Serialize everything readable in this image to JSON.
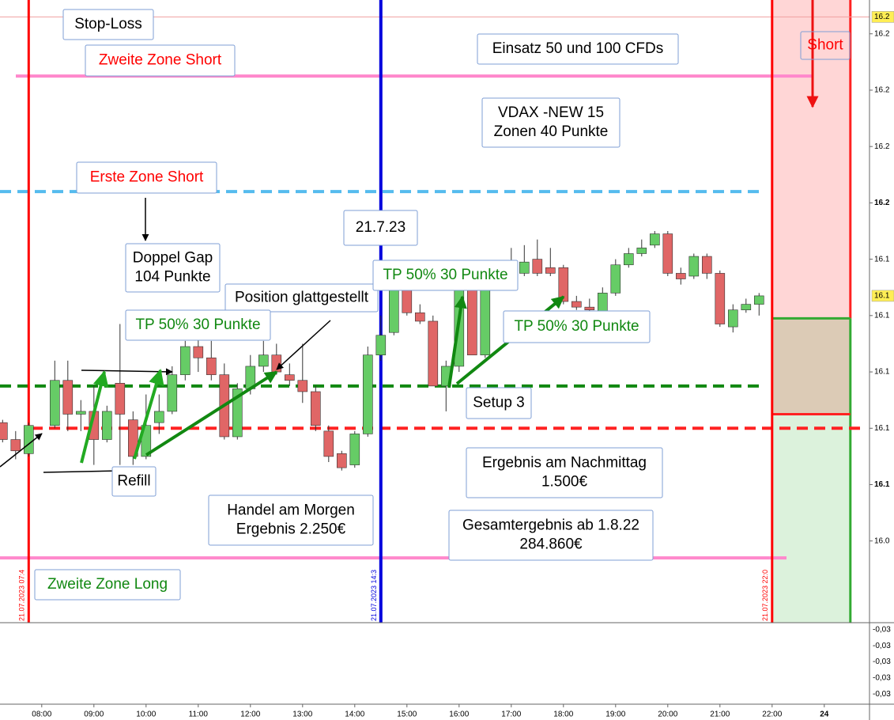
{
  "chart_data": {
    "type": "candlestick",
    "up_color": "#66cc66",
    "down_color": "#e06666",
    "x": [
      "07:15",
      "07:30",
      "07:45",
      "08:15",
      "08:30",
      "08:45",
      "09:00",
      "09:15",
      "09:30",
      "09:45",
      "10:00",
      "10:15",
      "10:30",
      "10:45",
      "11:00",
      "11:15",
      "11:30",
      "11:45",
      "12:00",
      "12:15",
      "12:30",
      "12:45",
      "13:00",
      "13:15",
      "13:30",
      "13:45",
      "14:00",
      "14:15",
      "14:30",
      "14:45",
      "15:00",
      "15:15",
      "15:30",
      "15:45",
      "16:00",
      "16:15",
      "16:30",
      "16:45",
      "17:00",
      "17:15",
      "17:30",
      "17:45",
      "18:00",
      "18:15",
      "18:30",
      "18:45",
      "19:00",
      "19:15",
      "19:30",
      "19:45",
      "20:00",
      "20:15",
      "20:30",
      "20:45",
      "21:00",
      "21:15",
      "21:30",
      "21:45"
    ],
    "open": [
      16122,
      16116,
      16111,
      16121,
      16137,
      16125,
      16126,
      16116,
      16136,
      16123,
      16110,
      16122,
      16126,
      16139,
      16149,
      16145,
      16139,
      16117,
      16134,
      16142,
      16146,
      16139,
      16137,
      16133,
      16119,
      16111,
      16107,
      16118,
      16146,
      16154,
      16170,
      16161,
      16158,
      16135,
      16142,
      16170,
      16146,
      16172,
      16175,
      16175,
      16180,
      16177,
      16177,
      16165,
      16163,
      16161,
      16168,
      16178,
      16182,
      16185,
      16189,
      16175,
      16174,
      16181,
      16175,
      16156,
      16162,
      16164
    ],
    "high": [
      16123,
      16119,
      16122,
      16144,
      16144,
      16130,
      16135,
      16128,
      16157,
      16126,
      16132,
      16132,
      16142,
      16151,
      16153,
      16151,
      16143,
      16136,
      16146,
      16151,
      16150,
      16143,
      16150,
      16135,
      16121,
      16112,
      16119,
      16149,
      16160,
      16171,
      16174,
      16164,
      16160,
      16144,
      16173,
      16174,
      16177,
      16178,
      16184,
      16185,
      16187,
      16184,
      16178,
      16167,
      16166,
      16170,
      16180,
      16184,
      16187,
      16190,
      16190,
      16177,
      16182,
      16182,
      16176,
      16164,
      16166,
      16168
    ],
    "low": [
      16115,
      16109,
      16110,
      16120,
      16119,
      16119,
      16107,
      16115,
      16107,
      16107,
      16109,
      16118,
      16125,
      16137,
      16140,
      16137,
      16116,
      16116,
      16132,
      16140,
      16139,
      16135,
      16129,
      16119,
      16108,
      16105,
      16106,
      16117,
      16144,
      16153,
      16160,
      16157,
      16135,
      16126,
      16140,
      16146,
      16145,
      16170,
      16174,
      16174,
      16174,
      16174,
      16164,
      16162,
      16160,
      16160,
      16167,
      16177,
      16181,
      16184,
      16174,
      16171,
      16173,
      16173,
      16156,
      16154,
      16161,
      16160
    ],
    "close": [
      16116,
      16112,
      16121,
      16137,
      16125,
      16126,
      16116,
      16126,
      16125,
      16110,
      16121,
      16126,
      16139,
      16149,
      16145,
      16139,
      16117,
      16134,
      16142,
      16146,
      16140,
      16137,
      16133,
      16121,
      16110,
      16106,
      16118,
      16146,
      16153,
      16170,
      16161,
      16158,
      16135,
      16142,
      16170,
      16146,
      16171,
      16175,
      16179,
      16179,
      16175,
      16175,
      16165,
      16163,
      16162,
      16168,
      16178,
      16182,
      16184,
      16189,
      16175,
      16173,
      16181,
      16175,
      16157,
      16162,
      16164,
      16167
    ],
    "xlim": [
      "07:12",
      "23:52"
    ],
    "xticks": [
      "08:00",
      "09:00",
      "10:00",
      "11:00",
      "12:00",
      "13:00",
      "14:00",
      "15:00",
      "16:00",
      "17:00",
      "18:00",
      "19:00",
      "20:00",
      "21:00",
      "22:00",
      {
        "value": "23:00",
        "label": "24"
      }
    ],
    "ylim": [
      16051,
      16272
    ],
    "yticks": [
      {
        "value": 16260,
        "label": "16.2"
      },
      {
        "value": 16240,
        "label": "16.2"
      },
      {
        "value": 16220,
        "label": "16.2"
      },
      {
        "value": 16200,
        "label": "16.2"
      },
      {
        "value": 16180,
        "label": "16.1"
      },
      {
        "value": 16160,
        "label": "16.1"
      },
      {
        "value": 16140,
        "label": "16.1"
      },
      {
        "value": 16120,
        "label": "16.1"
      },
      {
        "value": 16100,
        "label": "16.1"
      },
      {
        "value": 16080,
        "label": "16.0"
      }
    ],
    "grid": false,
    "price_tags": [
      {
        "value": 16266,
        "label": "16.2"
      },
      {
        "value": 16167,
        "label": "16.1"
      }
    ],
    "levels": [
      {
        "value": 16266,
        "color": "#f0a0a0",
        "dashed": false
      },
      {
        "value": 16245,
        "color": "#ff88cc",
        "dashed": false
      },
      {
        "value": 16204,
        "color": "#55bbee",
        "dashed": true
      },
      {
        "value": 16135,
        "color": "#118811",
        "dashed": true
      },
      {
        "value": 16120,
        "color": "#ff2222",
        "dashed": true
      },
      {
        "value": 16074,
        "color": "#ff88cc",
        "dashed": false
      }
    ],
    "markers": [
      {
        "x": "07:45",
        "label": "21.07.2023 07:4",
        "color": "#ff0000"
      },
      {
        "x": "14:30",
        "label": "21.07.2023 14:3",
        "color": "#0000dd"
      },
      {
        "x": "22:00",
        "label": "21.07.2023 22:0",
        "color": "#ff0000"
      }
    ],
    "position": {
      "entry": 16159,
      "target": 16125
    },
    "indicator_labels": [
      "-0,03",
      "-0,03",
      "-0,03",
      "-0,03",
      "-0,03"
    ],
    "annotations": [
      {
        "lines": [
          "Stop-Loss"
        ],
        "color": "#000000"
      },
      {
        "lines": [
          "Zweite Zone Short"
        ],
        "color": "#ff0000"
      },
      {
        "lines": [
          "Einsatz 50 und 100 CFDs"
        ],
        "color": "#000000"
      },
      {
        "lines": [
          "Short"
        ],
        "color": "#ff0000"
      },
      {
        "lines": [
          "VDAX -NEW 15",
          "Zonen 40 Punkte"
        ],
        "color": "#000000"
      },
      {
        "lines": [
          "Erste Zone Short"
        ],
        "color": "#ff0000"
      },
      {
        "lines": [
          "21.7.23"
        ],
        "color": "#000000"
      },
      {
        "lines": [
          "Doppel Gap",
          "104 Punkte"
        ],
        "color": "#000000"
      },
      {
        "lines": [
          "Position glattgestellt"
        ],
        "color": "#000000"
      },
      {
        "lines": [
          "TP 50% 30 Punkte"
        ],
        "color": "#118811"
      },
      {
        "lines": [
          "TP 50% 30 Punkte"
        ],
        "color": "#118811"
      },
      {
        "lines": [
          "TP 50% 30 Punkte"
        ],
        "color": "#118811"
      },
      {
        "lines": [
          "Setup 3"
        ],
        "color": "#000000"
      },
      {
        "lines": [
          "Refill"
        ],
        "color": "#000000"
      },
      {
        "lines": [
          "Ergebnis am Nachmittag",
          "1.500€"
        ],
        "color": "#000000"
      },
      {
        "lines": [
          "Handel am Morgen",
          "Ergebnis 2.250€"
        ],
        "color": "#000000"
      },
      {
        "lines": [
          "Gesamtergebnis ab 1.8.22",
          "284.860€"
        ],
        "color": "#000000"
      },
      {
        "lines": [
          "Zweite Zone Long"
        ],
        "color": "#118811"
      }
    ]
  }
}
